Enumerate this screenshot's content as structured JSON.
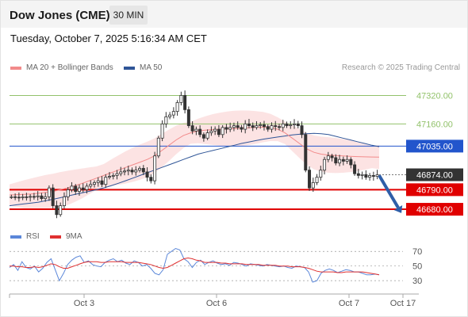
{
  "header": {
    "title": "Dow Jones (CME)",
    "interval": "30 MIN"
  },
  "timestamp": "Tuesday, October 7, 2025 5:16:34 AM CET",
  "legend": {
    "bollinger": "MA 20 + Bollinger Bands",
    "ma50": "MA 50",
    "credit": "Research © 2025 Trading Central"
  },
  "rsi_legend": {
    "rsi": "RSI",
    "ma9": "9MA"
  },
  "colors": {
    "bollinger": "#f28b8b",
    "bollinger_band_fill": "#fbd9d9",
    "ma50": "#2f5597",
    "resistance": "#92c26b",
    "pivot": "#2255cc",
    "support": "#e00000",
    "last_price": "#333333",
    "candles": "#333333",
    "rsi": "#5b87d9",
    "rsi_ma": "#e03030",
    "arrow": "#2e5ea8"
  },
  "chart_data": [
    {
      "type": "candlestick",
      "title": "Dow Jones (CME)",
      "interval": "30 MIN",
      "x_ticks": [
        "Oct 3",
        "Oct 6",
        "Oct 7",
        "Oct 17"
      ],
      "ylim": [
        46600,
        47420
      ],
      "levels": [
        {
          "value": 47320.0,
          "label": "47320.00",
          "kind": "resistance"
        },
        {
          "value": 47160.0,
          "label": "47160.00",
          "kind": "resistance"
        },
        {
          "value": 47035.0,
          "label": "47035.00",
          "kind": "pivot"
        },
        {
          "value": 46874.0,
          "label": "46874.00",
          "kind": "last"
        },
        {
          "value": 46790.0,
          "label": "46790.00",
          "kind": "support"
        },
        {
          "value": 46680.0,
          "label": "46680.00",
          "kind": "support"
        }
      ],
      "forecast": {
        "direction": "down",
        "from": 46870,
        "to": 46680
      },
      "close": [
        46750,
        46748,
        46745,
        46750,
        46748,
        46752,
        46750,
        46755,
        46740,
        46750,
        46800,
        46700,
        46650,
        46700,
        46750,
        46790,
        46810,
        46780,
        46800,
        46790,
        46810,
        46820,
        46830,
        46840,
        46820,
        46860,
        46865,
        46870,
        46880,
        46890,
        46895,
        46900,
        46890,
        46900,
        46910,
        46890,
        46860,
        46840,
        46980,
        47080,
        47160,
        47200,
        47210,
        47230,
        47280,
        47320,
        47240,
        47150,
        47120,
        47130,
        47100,
        47080,
        47110,
        47120,
        47130,
        47100,
        47140,
        47130,
        47140,
        47150,
        47140,
        47130,
        47160,
        47150,
        47140,
        47150,
        47155,
        47145,
        47130,
        47150,
        47145,
        47140,
        47160,
        47150,
        47155,
        47160,
        47150,
        47100,
        46900,
        46800,
        46830,
        46860,
        46900,
        46960,
        46980,
        46970,
        46940,
        46960,
        46950,
        46960,
        46930,
        46880,
        46870,
        46875,
        46860,
        46870,
        46865,
        46874
      ],
      "ma50": [
        46700,
        46705,
        46710,
        46715,
        46720,
        46728,
        46736,
        46745,
        46754,
        46763,
        46772,
        46781,
        46790,
        46800,
        46812,
        46826,
        46840,
        46855,
        46870,
        46885,
        46900,
        46915,
        46930,
        46945,
        46960,
        46975,
        46990,
        47000,
        47010,
        47020,
        47030,
        47040,
        47050,
        47058,
        47066,
        47074,
        47080,
        47086,
        47092,
        47098,
        47102,
        47105,
        47107,
        47105,
        47100,
        47090,
        47080,
        47070,
        47060,
        47050,
        47040,
        47032
      ],
      "ma20": [
        46760,
        46762,
        46764,
        46766,
        46770,
        46775,
        46780,
        46790,
        46800,
        46812,
        46825,
        46840,
        46855,
        46870,
        46885,
        46900,
        46915,
        46930,
        46945,
        46960,
        46980,
        47010,
        47040,
        47070,
        47095,
        47110,
        47120,
        47125,
        47128,
        47130,
        47132,
        47134,
        47136,
        47138,
        47140,
        47142,
        47140,
        47130,
        47110,
        47080,
        47050,
        47020,
        47000,
        46990,
        46985,
        46982,
        46980,
        46978,
        46976,
        46975,
        46974,
        46973
      ]
    },
    {
      "type": "line",
      "title": "RSI",
      "series": [
        {
          "name": "RSI"
        },
        {
          "name": "9MA"
        }
      ],
      "ylim": [
        15,
        80
      ],
      "y_ticks": [
        70,
        50,
        30
      ],
      "rsi": [
        48,
        52,
        44,
        56,
        48,
        46,
        50,
        42,
        47,
        55,
        60,
        45,
        30,
        40,
        52,
        58,
        62,
        64,
        55,
        57,
        52,
        50,
        49,
        55,
        58,
        60,
        56,
        58,
        54,
        52,
        57,
        55,
        50,
        52,
        47,
        40,
        38,
        45,
        66,
        70,
        74,
        72,
        60,
        56,
        48,
        55,
        58,
        52,
        55,
        57,
        54,
        52,
        53,
        51,
        55,
        54,
        52,
        50,
        53,
        52,
        51,
        50,
        52,
        51,
        50,
        49,
        50,
        48,
        47,
        50,
        49,
        48,
        42,
        28,
        30,
        40,
        44,
        46,
        44,
        41,
        43,
        45,
        44,
        42,
        42,
        40,
        38,
        38,
        39,
        38
      ],
      "ma9": [
        50,
        50,
        49,
        49,
        48,
        48,
        49,
        48,
        49,
        51,
        53,
        52,
        49,
        47,
        47,
        49,
        51,
        53,
        55,
        56,
        56,
        56,
        55,
        55,
        56,
        56,
        56,
        56,
        55,
        55,
        55,
        55,
        54,
        53,
        52,
        50,
        48,
        47,
        48,
        51,
        54,
        57,
        60,
        61,
        60,
        58,
        57,
        55,
        55,
        55,
        55,
        54,
        54,
        53,
        53,
        53,
        53,
        52,
        52,
        52,
        52,
        51,
        51,
        51,
        51,
        50,
        50,
        50,
        49,
        49,
        49,
        48,
        47,
        45,
        43,
        42,
        42,
        42,
        42,
        41,
        41,
        42,
        42,
        42,
        42,
        42,
        41,
        40,
        39,
        38
      ]
    }
  ]
}
